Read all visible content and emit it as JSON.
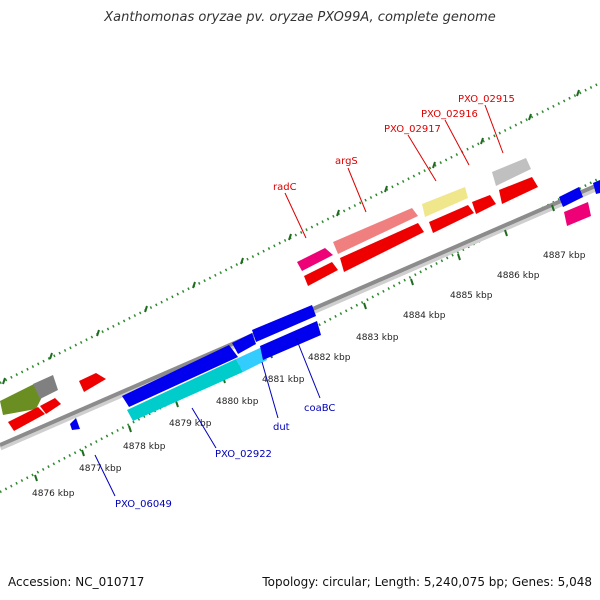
{
  "title": "Xanthomonas oryzae pv. oryzae PXO99A, complete genome",
  "footer": {
    "accession": "Accession: NC_010717",
    "summary": "Topology: circular; Length: 5,240,075 bp; Genes: 5,048"
  },
  "colors": {
    "backbone": "#8c8c8c",
    "tick_dots": "#2e8b2e",
    "top_labels": "#dd0000",
    "bottom_labels": "#0000bb"
  },
  "ruler_labels": [
    "4876 kbp",
    "4877 kbp",
    "4878 kbp",
    "4879 kbp",
    "4880 kbp",
    "4881 kbp",
    "4882 kbp",
    "4883 kbp",
    "4884 kbp",
    "4885 kbp",
    "4886 kbp",
    "4887 kbp"
  ],
  "top_gene_labels": [
    "radC",
    "argS",
    "PXO_02917",
    "PXO_02916",
    "PXO_02915"
  ],
  "bottom_gene_labels": [
    "coaBC",
    "dut",
    "PXO_02922",
    "PXO_06049"
  ]
}
